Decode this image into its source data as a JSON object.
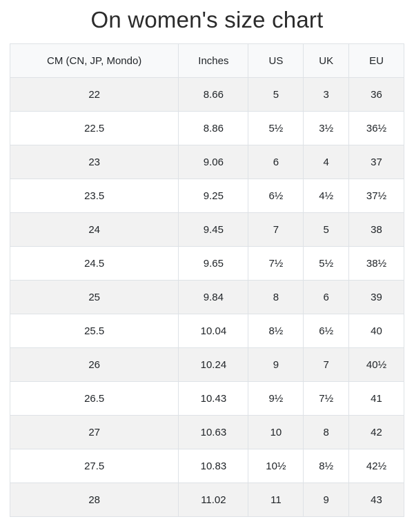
{
  "page": {
    "title": "On women's size chart"
  },
  "colors": {
    "text": "#212529",
    "border": "#dee2e6",
    "header_bg": "#f8f9fa",
    "stripe_bg": "#f2f2f2",
    "row_bg": "#ffffff"
  },
  "chart_data": {
    "type": "table",
    "title": "On women's size chart",
    "columns": [
      "CM (CN, JP, Mondo)",
      "Inches",
      "US",
      "UK",
      "EU"
    ],
    "rows": [
      [
        "22",
        "8.66",
        "5",
        "3",
        "36"
      ],
      [
        "22.5",
        "8.86",
        "5½",
        "3½",
        "36½"
      ],
      [
        "23",
        "9.06",
        "6",
        "4",
        "37"
      ],
      [
        "23.5",
        "9.25",
        "6½",
        "4½",
        "37½"
      ],
      [
        "24",
        "9.45",
        "7",
        "5",
        "38"
      ],
      [
        "24.5",
        "9.65",
        "7½",
        "5½",
        "38½"
      ],
      [
        "25",
        "9.84",
        "8",
        "6",
        "39"
      ],
      [
        "25.5",
        "10.04",
        "8½",
        "6½",
        "40"
      ],
      [
        "26",
        "10.24",
        "9",
        "7",
        "40½"
      ],
      [
        "26.5",
        "10.43",
        "9½",
        "7½",
        "41"
      ],
      [
        "27",
        "10.63",
        "10",
        "8",
        "42"
      ],
      [
        "27.5",
        "10.83",
        "10½",
        "8½",
        "42½"
      ],
      [
        "28",
        "11.02",
        "11",
        "9",
        "43"
      ]
    ],
    "layout": {
      "striped": true,
      "stripe_pattern": "odd-data-rows-shaded",
      "alignment": "center",
      "grid": true
    }
  }
}
